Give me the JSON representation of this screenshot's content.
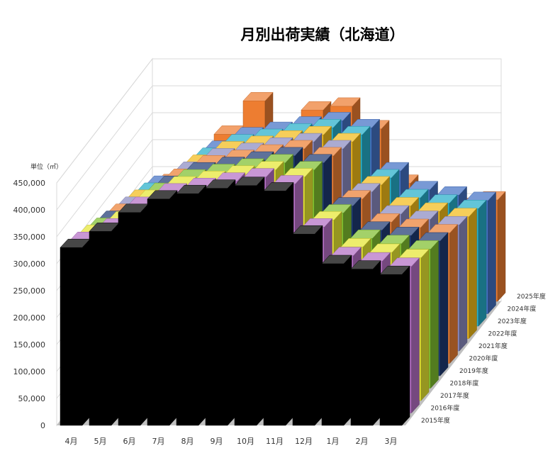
{
  "chart_data": {
    "type": "bar",
    "subtype": "3d-column",
    "title": "月別出荷実績（北海道）",
    "unit_label": "単位（㎥）",
    "categories": [
      "4月",
      "5月",
      "6月",
      "7月",
      "8月",
      "9月",
      "10月",
      "11月",
      "12月",
      "1月",
      "2月",
      "3月"
    ],
    "ylim": [
      0,
      450000
    ],
    "yticks": [
      "0",
      "50,000",
      "100,000",
      "150,000",
      "200,000",
      "250,000",
      "300,000",
      "350,000",
      "400,000",
      "450,000"
    ],
    "legend_position": "right depth axis",
    "grid": true,
    "series": [
      {
        "name": "2015年度",
        "color": "#000000",
        "values": [
          330000,
          360000,
          395000,
          420000,
          430000,
          440000,
          445000,
          435000,
          355000,
          300000,
          290000,
          280000
        ]
      },
      {
        "name": "2016年度",
        "color": "#b46fc4",
        "values": [
          320000,
          345000,
          385000,
          410000,
          420000,
          430000,
          438000,
          425000,
          345000,
          292000,
          282000,
          272000
        ]
      },
      {
        "name": "2017年度",
        "color": "#e6e633",
        "values": [
          310000,
          335000,
          375000,
          400000,
          410000,
          420000,
          428000,
          415000,
          335000,
          285000,
          275000,
          265000
        ]
      },
      {
        "name": "2018年度",
        "color": "#7fbf2f",
        "values": [
          300000,
          325000,
          365000,
          390000,
          400000,
          410000,
          418000,
          405000,
          325000,
          278000,
          268000,
          258000
        ]
      },
      {
        "name": "2019年度",
        "color": "#1f3a73",
        "values": [
          290000,
          315000,
          355000,
          380000,
          390000,
          400000,
          408000,
          395000,
          315000,
          270000,
          260000,
          250000
        ]
      },
      {
        "name": "2020年度",
        "color": "#ec7f34",
        "values": [
          280000,
          305000,
          345000,
          370000,
          380000,
          390000,
          398000,
          385000,
          305000,
          262000,
          252000,
          242000
        ]
      },
      {
        "name": "2021年度",
        "color": "#8a8ac0",
        "values": [
          270000,
          295000,
          335000,
          360000,
          370000,
          380000,
          388000,
          375000,
          295000,
          254000,
          244000,
          234000
        ]
      },
      {
        "name": "2022年度",
        "color": "#f2bb1a",
        "values": [
          260000,
          285000,
          325000,
          350000,
          360000,
          370000,
          378000,
          365000,
          285000,
          246000,
          236000,
          226000
        ]
      },
      {
        "name": "2023年度",
        "color": "#27aec9",
        "values": [
          250000,
          275000,
          315000,
          340000,
          350000,
          360000,
          368000,
          355000,
          275000,
          238000,
          228000,
          218000
        ]
      },
      {
        "name": "2024年度",
        "color": "#4472c4",
        "values": [
          240000,
          265000,
          305000,
          330000,
          340000,
          350000,
          358000,
          345000,
          265000,
          230000,
          220000,
          210000
        ]
      },
      {
        "name": "2025年度",
        "color": "#ed7d31",
        "values": [
          220000,
          236000,
          310000,
          372000,
          296000,
          355000,
          362000,
          320000,
          219000,
          184000,
          176000,
          188000
        ]
      }
    ]
  }
}
